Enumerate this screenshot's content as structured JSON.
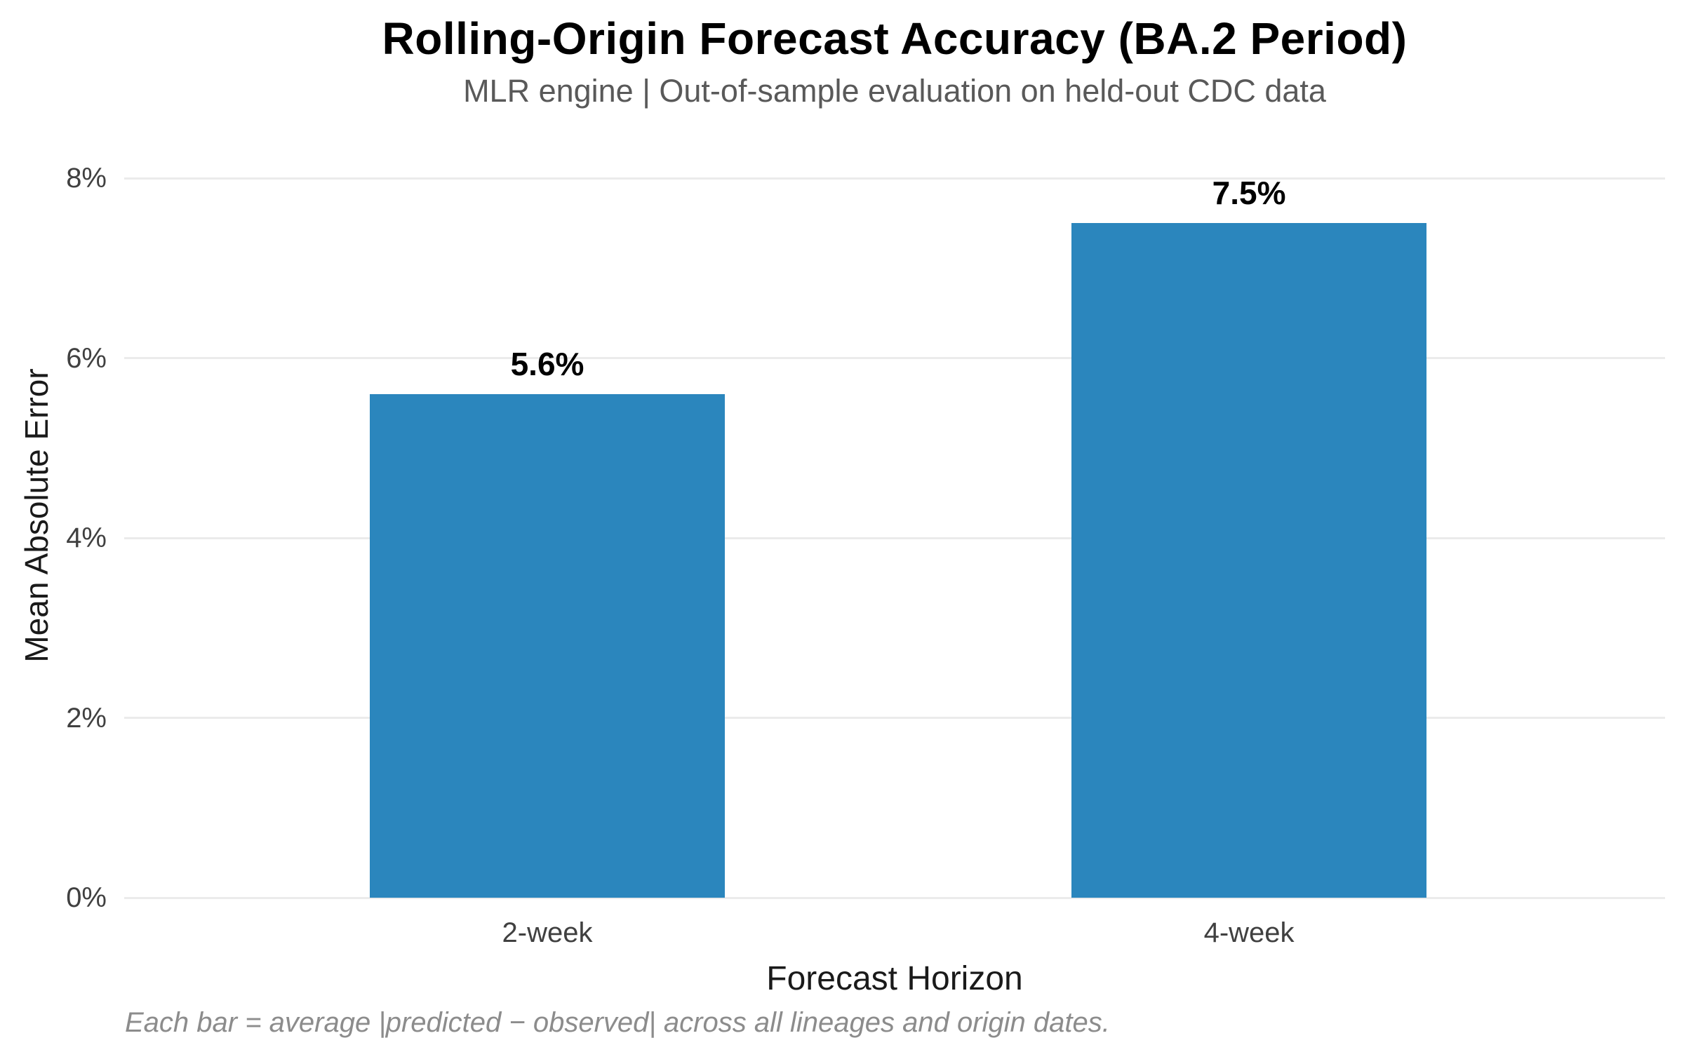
{
  "chart_data": {
    "type": "bar",
    "title": "Rolling-Origin Forecast Accuracy (BA.2 Period)",
    "subtitle": "MLR engine | Out-of-sample evaluation on held-out CDC data",
    "categories": [
      "2-week",
      "4-week"
    ],
    "values": [
      5.6,
      7.5
    ],
    "bar_labels": [
      "5.6%",
      "7.5%"
    ],
    "xlabel": "Forecast Horizon",
    "ylabel": "Mean Absolute Error",
    "y_ticks": [
      0,
      2,
      4,
      6,
      8
    ],
    "y_tick_labels": [
      "0%",
      "2%",
      "4%",
      "6%",
      "8%"
    ],
    "ylim": [
      0,
      8
    ],
    "grid": true,
    "legend_position": "none",
    "bar_color": "#2b86bd",
    "gridline_color": "#ebebeb",
    "caption": "Each bar = average |predicted − observed| across all lineages and origin dates."
  }
}
